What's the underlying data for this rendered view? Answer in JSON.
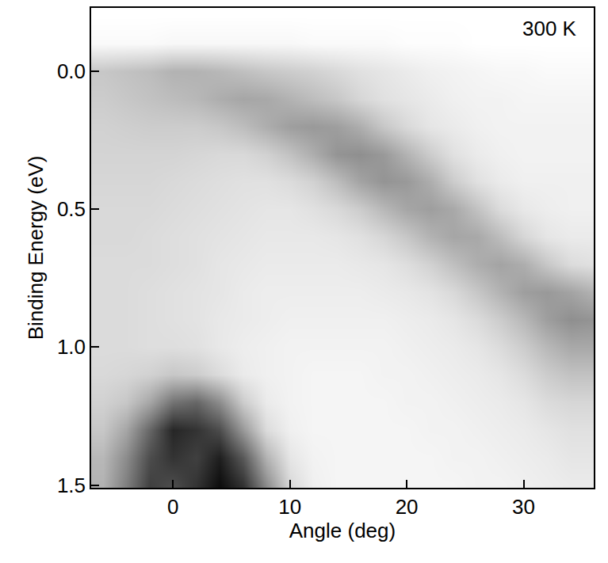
{
  "chart_data": {
    "type": "heatmap",
    "annotations": [
      "300 K"
    ],
    "x_label": "Angle (deg)",
    "y_label": "Binding Energy (eV)",
    "xlim": [
      -7,
      36
    ],
    "xticks": [
      0,
      10,
      20,
      30
    ],
    "ylim": [
      1.51,
      -0.23
    ],
    "yticks": [
      {
        "value": 0,
        "label": "0.0"
      },
      0.5,
      {
        "value": 1,
        "label": "1.0"
      },
      1.5
    ],
    "grid": false,
    "zlim": [
      0,
      1
    ],
    "x": [
      -6,
      -4,
      -2,
      0,
      2,
      4,
      6,
      8,
      10,
      12,
      14,
      16,
      18,
      20,
      22,
      24,
      26,
      28,
      30,
      32,
      34,
      36
    ],
    "y": [
      -0.2,
      -0.1,
      0.0,
      0.1,
      0.2,
      0.3,
      0.4,
      0.5,
      0.6,
      0.7,
      0.8,
      0.9,
      1.0,
      1.1,
      1.2,
      1.3,
      1.4,
      1.5
    ],
    "z": [
      [
        0,
        0,
        0,
        0,
        0,
        0,
        0,
        0,
        0,
        0,
        0,
        0,
        0,
        0,
        0,
        0,
        0,
        0,
        0,
        0,
        0,
        0
      ],
      [
        0.02,
        0.02,
        0.02,
        0.03,
        0.03,
        0.03,
        0.03,
        0.03,
        0.03,
        0.02,
        0.02,
        0.02,
        0.02,
        0.01,
        0.01,
        0.01,
        0,
        0,
        0,
        0,
        0,
        0
      ],
      [
        0.22,
        0.24,
        0.26,
        0.3,
        0.3,
        0.28,
        0.25,
        0.22,
        0.2,
        0.18,
        0.15,
        0.12,
        0.1,
        0.08,
        0.06,
        0.05,
        0.04,
        0.03,
        0.03,
        0.02,
        0.02,
        0.02
      ],
      [
        0.2,
        0.22,
        0.24,
        0.26,
        0.28,
        0.32,
        0.35,
        0.34,
        0.3,
        0.26,
        0.22,
        0.16,
        0.12,
        0.1,
        0.08,
        0.06,
        0.05,
        0.05,
        0.04,
        0.04,
        0.04,
        0.04
      ],
      [
        0.18,
        0.19,
        0.2,
        0.2,
        0.2,
        0.22,
        0.26,
        0.32,
        0.38,
        0.4,
        0.38,
        0.32,
        0.22,
        0.15,
        0.1,
        0.08,
        0.06,
        0.05,
        0.05,
        0.05,
        0.05,
        0.05
      ],
      [
        0.17,
        0.17,
        0.17,
        0.17,
        0.16,
        0.15,
        0.15,
        0.18,
        0.24,
        0.32,
        0.42,
        0.44,
        0.4,
        0.3,
        0.2,
        0.12,
        0.08,
        0.06,
        0.05,
        0.05,
        0.05,
        0.05
      ],
      [
        0.16,
        0.16,
        0.16,
        0.15,
        0.14,
        0.13,
        0.12,
        0.12,
        0.14,
        0.18,
        0.26,
        0.36,
        0.42,
        0.4,
        0.32,
        0.2,
        0.12,
        0.08,
        0.06,
        0.06,
        0.06,
        0.06
      ],
      [
        0.15,
        0.15,
        0.15,
        0.14,
        0.13,
        0.12,
        0.11,
        0.1,
        0.1,
        0.12,
        0.15,
        0.2,
        0.28,
        0.35,
        0.38,
        0.34,
        0.24,
        0.14,
        0.09,
        0.07,
        0.06,
        0.06
      ],
      [
        0.15,
        0.15,
        0.14,
        0.13,
        0.12,
        0.11,
        0.1,
        0.09,
        0.09,
        0.09,
        0.1,
        0.12,
        0.16,
        0.22,
        0.3,
        0.35,
        0.34,
        0.26,
        0.16,
        0.1,
        0.08,
        0.08
      ],
      [
        0.14,
        0.14,
        0.14,
        0.13,
        0.12,
        0.1,
        0.09,
        0.08,
        0.08,
        0.08,
        0.08,
        0.09,
        0.1,
        0.13,
        0.18,
        0.25,
        0.32,
        0.36,
        0.32,
        0.22,
        0.14,
        0.12
      ],
      [
        0.14,
        0.14,
        0.13,
        0.12,
        0.11,
        0.1,
        0.08,
        0.07,
        0.07,
        0.07,
        0.07,
        0.07,
        0.08,
        0.09,
        0.11,
        0.15,
        0.22,
        0.3,
        0.38,
        0.4,
        0.36,
        0.3
      ],
      [
        0.14,
        0.14,
        0.13,
        0.12,
        0.11,
        0.09,
        0.08,
        0.07,
        0.06,
        0.06,
        0.06,
        0.06,
        0.06,
        0.07,
        0.08,
        0.1,
        0.14,
        0.2,
        0.28,
        0.38,
        0.44,
        0.42
      ],
      [
        0.14,
        0.14,
        0.13,
        0.13,
        0.12,
        0.09,
        0.07,
        0.06,
        0.05,
        0.05,
        0.05,
        0.05,
        0.05,
        0.06,
        0.07,
        0.08,
        0.1,
        0.14,
        0.2,
        0.28,
        0.34,
        0.34
      ],
      [
        0.15,
        0.16,
        0.18,
        0.22,
        0.2,
        0.14,
        0.08,
        0.06,
        0.05,
        0.04,
        0.04,
        0.04,
        0.05,
        0.05,
        0.06,
        0.07,
        0.08,
        0.1,
        0.14,
        0.2,
        0.24,
        0.24
      ],
      [
        0.18,
        0.22,
        0.35,
        0.55,
        0.6,
        0.45,
        0.2,
        0.08,
        0.05,
        0.04,
        0.04,
        0.04,
        0.04,
        0.05,
        0.05,
        0.06,
        0.07,
        0.08,
        0.1,
        0.14,
        0.16,
        0.16
      ],
      [
        0.22,
        0.35,
        0.6,
        0.85,
        0.8,
        0.7,
        0.4,
        0.14,
        0.06,
        0.04,
        0.04,
        0.04,
        0.04,
        0.04,
        0.05,
        0.05,
        0.06,
        0.07,
        0.08,
        0.1,
        0.12,
        0.12
      ],
      [
        0.28,
        0.45,
        0.7,
        0.8,
        0.75,
        0.88,
        0.65,
        0.3,
        0.1,
        0.05,
        0.04,
        0.04,
        0.04,
        0.04,
        0.04,
        0.05,
        0.05,
        0.06,
        0.07,
        0.08,
        0.1,
        0.1
      ],
      [
        0.3,
        0.5,
        0.75,
        0.7,
        0.8,
        0.95,
        0.8,
        0.45,
        0.15,
        0.06,
        0.04,
        0.04,
        0.04,
        0.04,
        0.04,
        0.04,
        0.05,
        0.05,
        0.06,
        0.07,
        0.08,
        0.08
      ]
    ]
  }
}
